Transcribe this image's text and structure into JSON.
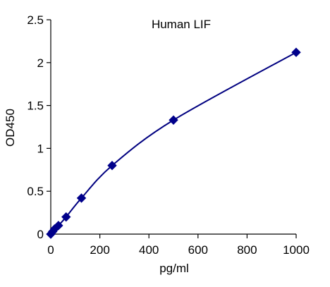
{
  "chart_data": {
    "type": "scatter",
    "title": "Human  LIF",
    "xlabel": "pg/ml",
    "ylabel": "OD450",
    "xlim": [
      0,
      1000
    ],
    "ylim": [
      0,
      2.5
    ],
    "x_ticks": [
      "0",
      "200",
      "400",
      "600",
      "800",
      "1000"
    ],
    "y_ticks": [
      "0",
      "0.5",
      "1",
      "1.5",
      "2",
      "2.5"
    ],
    "grid": false,
    "legend": "none",
    "series": [
      {
        "marker": "diamond",
        "color": "#00008b",
        "line_color": "#000080",
        "fit": "smooth curve",
        "x": [
          0,
          7.8,
          15.6,
          31.25,
          62.5,
          125,
          250,
          500,
          1000
        ],
        "y": [
          0.0,
          0.03,
          0.06,
          0.1,
          0.2,
          0.42,
          0.8,
          1.33,
          2.12
        ]
      }
    ]
  }
}
